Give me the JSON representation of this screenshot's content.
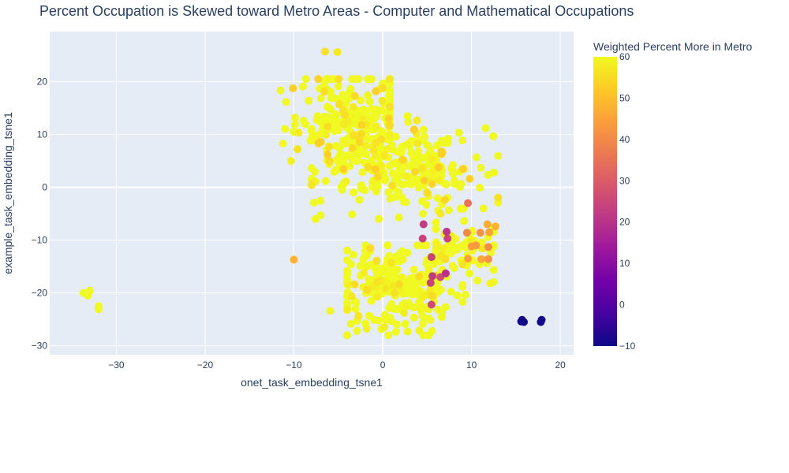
{
  "chart_data": {
    "type": "scatter",
    "title": "Percent Occupation is Skewed toward Metro Areas - Computer and Mathematical Occupations",
    "xlabel": "onet_task_embedding_tsne1",
    "ylabel": "example_task_embedding_tsne1",
    "xlim": [
      -37.5,
      21.5
    ],
    "ylim": [
      -31.7,
      29.5
    ],
    "xticks": [
      -30,
      -20,
      -10,
      0,
      10,
      20
    ],
    "yticks": [
      -30,
      -20,
      -10,
      0,
      10,
      20
    ],
    "grid": true,
    "colorbar": {
      "title": "Weighted Percent More in Metro",
      "min": -10,
      "max": 60,
      "ticks": [
        60,
        50,
        40,
        30,
        20,
        10,
        0,
        -10
      ],
      "colorscale": [
        "#0d0887",
        "#46039f",
        "#7201a8",
        "#9c179e",
        "#bd3786",
        "#d8576b",
        "#ed7953",
        "#fb9f3a",
        "#fdca26",
        "#f0f921"
      ]
    },
    "highlight_points": [
      {
        "x": -6.5,
        "y": 25.7,
        "v": 56
      },
      {
        "x": -5.1,
        "y": 25.6,
        "v": 57
      },
      {
        "x": -33.7,
        "y": -20.0,
        "v": 60
      },
      {
        "x": -33.0,
        "y": -19.6,
        "v": 60
      },
      {
        "x": -33.2,
        "y": -20.5,
        "v": 60
      },
      {
        "x": -32.0,
        "y": -22.5,
        "v": 60
      },
      {
        "x": -32.0,
        "y": -23.1,
        "v": 60
      },
      {
        "x": -10.0,
        "y": -13.7,
        "v": 48
      },
      {
        "x": -7.0,
        "y": -5.3,
        "v": 60
      },
      {
        "x": -5.9,
        "y": -23.4,
        "v": 60
      },
      {
        "x": 15.7,
        "y": -25.1,
        "v": -9.5
      },
      {
        "x": 15.6,
        "y": -25.4,
        "v": -9.5
      },
      {
        "x": 15.9,
        "y": -25.5,
        "v": -9.5
      },
      {
        "x": 17.9,
        "y": -25.1,
        "v": -9.5
      },
      {
        "x": 17.8,
        "y": -25.5,
        "v": -9.5
      },
      {
        "x": 4.6,
        "y": -7.0,
        "v": 22
      },
      {
        "x": 4.5,
        "y": -9.7,
        "v": 24
      },
      {
        "x": 7.2,
        "y": -8.4,
        "v": 21
      },
      {
        "x": 7.3,
        "y": -9.7,
        "v": 24
      },
      {
        "x": 5.5,
        "y": -13.2,
        "v": 24
      },
      {
        "x": 5.6,
        "y": -16.8,
        "v": 22
      },
      {
        "x": 5.4,
        "y": -18.1,
        "v": 24
      },
      {
        "x": 7.1,
        "y": -16.3,
        "v": 20
      },
      {
        "x": 6.5,
        "y": -17.0,
        "v": 26
      },
      {
        "x": 5.5,
        "y": -22.2,
        "v": 26
      },
      {
        "x": 5.8,
        "y": -14.5,
        "v": 60
      },
      {
        "x": 9.6,
        "y": -3.0,
        "v": 35
      },
      {
        "x": 9.5,
        "y": -8.6,
        "v": 40
      },
      {
        "x": 9.6,
        "y": -13.5,
        "v": 45
      },
      {
        "x": 10.0,
        "y": -11.2,
        "v": 44
      },
      {
        "x": 11.0,
        "y": -8.6,
        "v": 42
      },
      {
        "x": 11.1,
        "y": -13.6,
        "v": 46
      },
      {
        "x": 11.9,
        "y": -13.6,
        "v": 42
      },
      {
        "x": 12.0,
        "y": -8.5,
        "v": 45
      },
      {
        "x": 11.8,
        "y": -7.0,
        "v": 47
      },
      {
        "x": 12.7,
        "y": -7.4,
        "v": 48
      },
      {
        "x": 11.9,
        "y": -11.3,
        "v": 41
      },
      {
        "x": 10.5,
        "y": -11.0,
        "v": 43
      }
    ],
    "clusters": [
      {
        "cx": -3.5,
        "cy": 13.5,
        "sx": 3.2,
        "sy": 4.2,
        "n": 210,
        "xmin": -11.5,
        "xmax": 0.8,
        "ymin": 5.0,
        "ymax": 20.5,
        "vmin": 53,
        "vmax": 60
      },
      {
        "cx": 1.5,
        "cy": 3.5,
        "sx": 5.0,
        "sy": 3.8,
        "n": 260,
        "xmin": -8.0,
        "xmax": 13.0,
        "ymin": -6.0,
        "ymax": 13.5,
        "vmin": 53,
        "vmax": 60
      },
      {
        "cx": 1.5,
        "cy": -19.0,
        "sx": 3.6,
        "sy": 4.3,
        "n": 240,
        "xmin": -4.0,
        "xmax": 9.0,
        "ymin": -28.0,
        "ymax": -11.0,
        "vmin": 55,
        "vmax": 60
      },
      {
        "cx": 9.0,
        "cy": -12.0,
        "sx": 2.2,
        "sy": 3.5,
        "n": 70,
        "xmin": 6.0,
        "xmax": 12.5,
        "ymin": -26.0,
        "ymax": -4.0,
        "vmin": 56,
        "vmax": 60
      }
    ]
  }
}
